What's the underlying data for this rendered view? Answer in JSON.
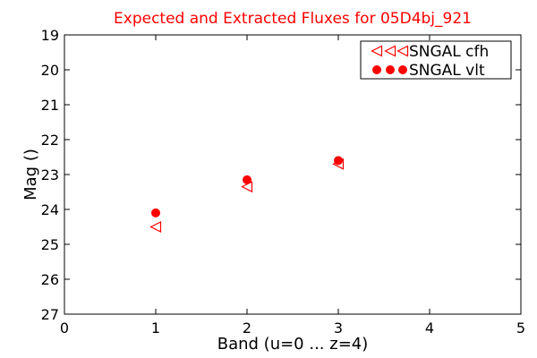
{
  "chart_data": {
    "type": "scatter",
    "title": "Expected and Extracted Fluxes for 05D4bj_921",
    "title_color": "#ff0000",
    "xlabel": "Band (u=0 ... z=4)",
    "ylabel": "Mag ()",
    "xlim": [
      0,
      5
    ],
    "ylim": [
      27,
      19
    ],
    "y_inverted": true,
    "grid": false,
    "x_ticks": [
      "0",
      "1",
      "2",
      "3",
      "4",
      "5"
    ],
    "y_ticks": [
      "19",
      "20",
      "21",
      "22",
      "23",
      "24",
      "25",
      "26",
      "27"
    ],
    "legend_position": "top-right",
    "series": [
      {
        "name": "SNGAL cfh",
        "marker": "triangle-left-open",
        "color": "#ff0000",
        "points": [
          {
            "x": 1,
            "y": 24.5
          },
          {
            "x": 2,
            "y": 23.35
          },
          {
            "x": 3,
            "y": 22.7
          }
        ]
      },
      {
        "name": "SNGAL vlt",
        "marker": "circle-filled",
        "color": "#ff0000",
        "points": [
          {
            "x": 1,
            "y": 24.1
          },
          {
            "x": 2,
            "y": 23.15
          },
          {
            "x": 3,
            "y": 22.6
          }
        ]
      }
    ]
  }
}
